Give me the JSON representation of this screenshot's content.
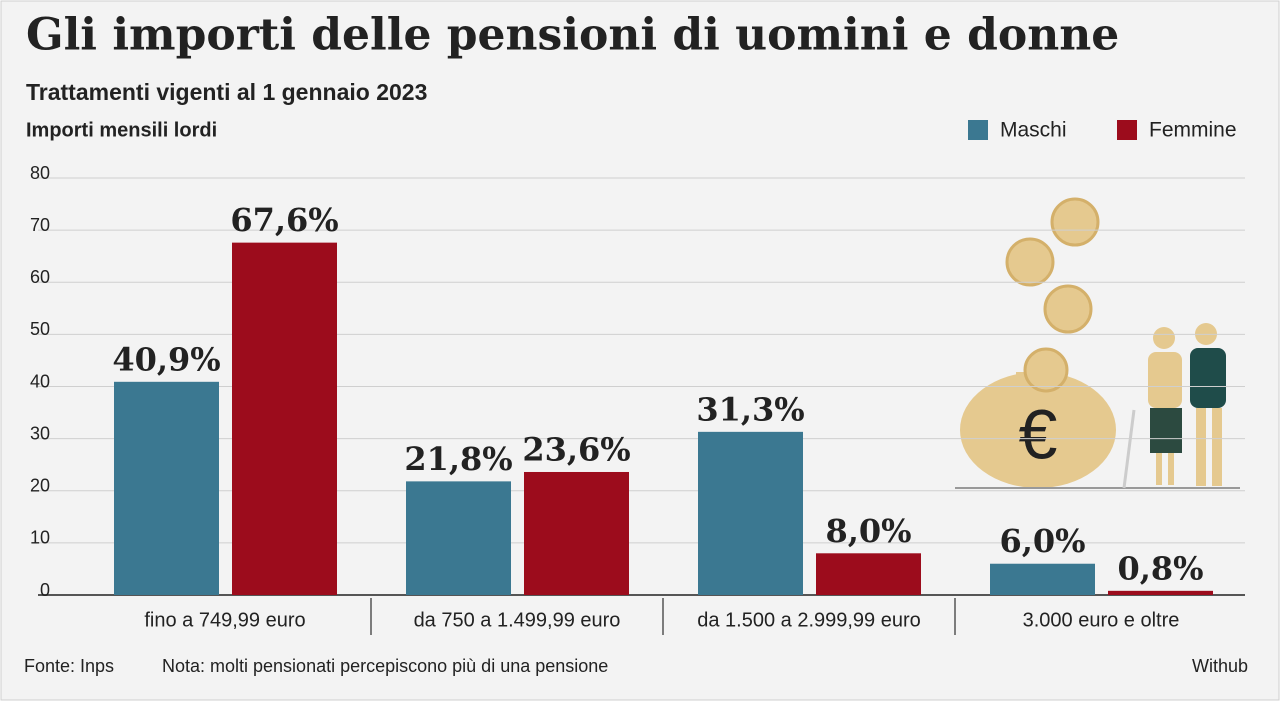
{
  "chart_data": {
    "type": "bar",
    "title": "Gli importi delle pensioni di uomini e donne",
    "subtitle": "Trattamenti vigenti al 1 gennaio 2023",
    "y_label": "Importi mensili lordi",
    "categories": [
      "fino a 749,99 euro",
      "da 750 a 1.499,99 euro",
      "da 1.500 a 2.999,99 euro",
      "3.000 euro e oltre"
    ],
    "series": [
      {
        "name": "Maschi",
        "color": "#3b7891",
        "values": [
          40.9,
          21.8,
          31.3,
          6.0
        ],
        "value_labels": [
          "40,9%",
          "21,8%",
          "31,3%",
          "6,0%"
        ]
      },
      {
        "name": "Femmine",
        "color": "#9c0c1c",
        "values": [
          67.6,
          23.6,
          8.0,
          0.8
        ],
        "value_labels": [
          "67,6%",
          "23,6%",
          "8,0%",
          "0,8%"
        ]
      }
    ],
    "ylim": [
      0,
      80
    ],
    "yticks": [
      0,
      10,
      20,
      30,
      40,
      50,
      60,
      70,
      80
    ],
    "grid": true,
    "legend": "top-right",
    "source": "Fonte: Inps",
    "note": "Nota: molti pensionati percepiscono più di una pensione",
    "credit": "Withub"
  }
}
